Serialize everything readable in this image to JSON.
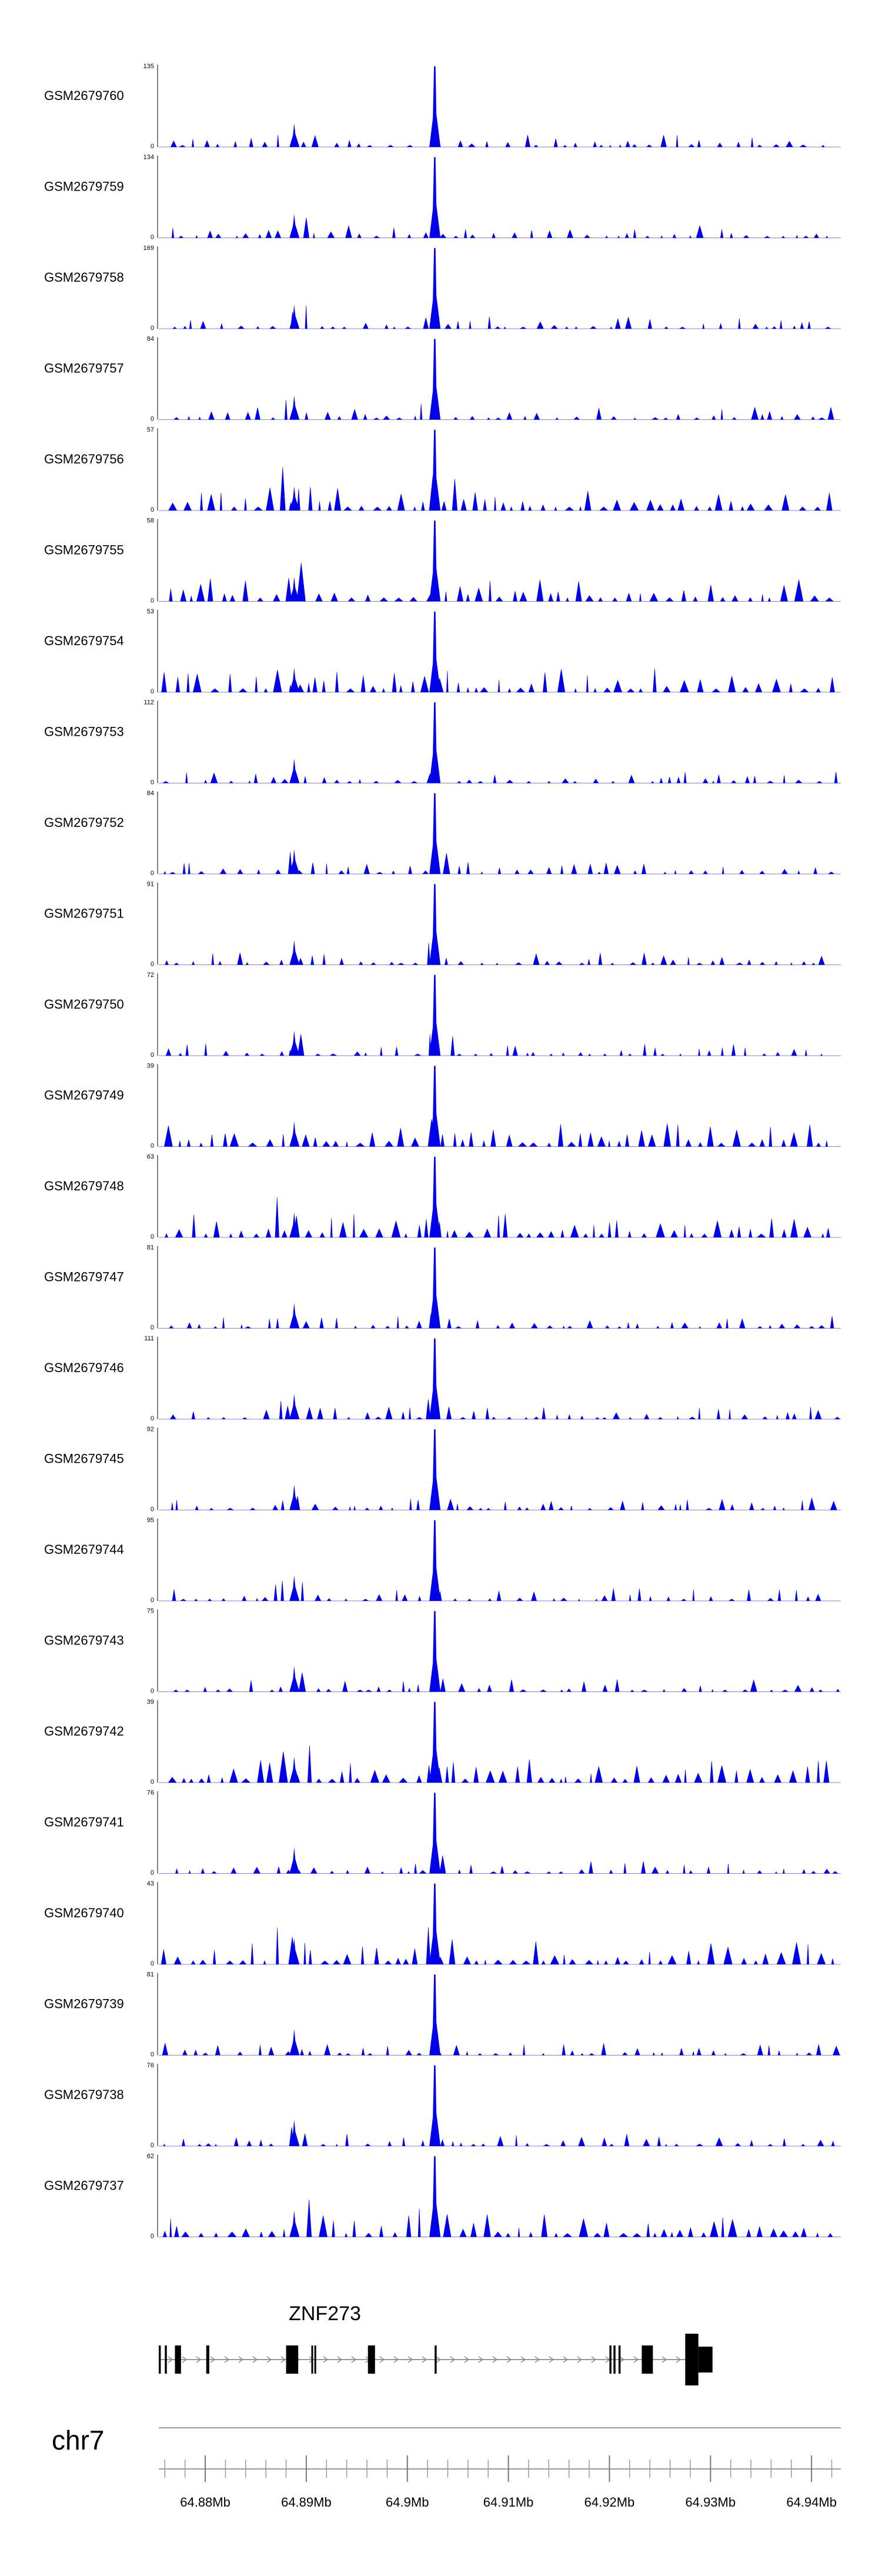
{
  "chart_data": {
    "type": "area",
    "title": "",
    "xlabel": "",
    "ylabel": "",
    "chromosome": "chr7",
    "x_range": [
      64.8754,
      64.9429
    ],
    "x_unit": "Mb",
    "x_tick_labels": [
      "64.88Mb",
      "64.89Mb",
      "64.9Mb",
      "64.91Mb",
      "64.92Mb",
      "64.93Mb",
      "64.94Mb"
    ],
    "x_tick_values": [
      64.88,
      64.89,
      64.9,
      64.91,
      64.92,
      64.93,
      64.94
    ],
    "fill_color": "#0000ee",
    "main_peak_x": 64.9027,
    "secondary_peak_x": 64.8888,
    "tracks": [
      {
        "name": "GSM2679760",
        "ymax": 135
      },
      {
        "name": "GSM2679759",
        "ymax": 134
      },
      {
        "name": "GSM2679758",
        "ymax": 169
      },
      {
        "name": "GSM2679757",
        "ymax": 84
      },
      {
        "name": "GSM2679756",
        "ymax": 57
      },
      {
        "name": "GSM2679755",
        "ymax": 58
      },
      {
        "name": "GSM2679754",
        "ymax": 53
      },
      {
        "name": "GSM2679753",
        "ymax": 112
      },
      {
        "name": "GSM2679752",
        "ymax": 84
      },
      {
        "name": "GSM2679751",
        "ymax": 91
      },
      {
        "name": "GSM2679750",
        "ymax": 72
      },
      {
        "name": "GSM2679749",
        "ymax": 39
      },
      {
        "name": "GSM2679748",
        "ymax": 63
      },
      {
        "name": "GSM2679747",
        "ymax": 81
      },
      {
        "name": "GSM2679746",
        "ymax": 111
      },
      {
        "name": "GSM2679745",
        "ymax": 92
      },
      {
        "name": "GSM2679744",
        "ymax": 95
      },
      {
        "name": "GSM2679743",
        "ymax": 75
      },
      {
        "name": "GSM2679742",
        "ymax": 39
      },
      {
        "name": "GSM2679741",
        "ymax": 76
      },
      {
        "name": "GSM2679740",
        "ymax": 43
      },
      {
        "name": "GSM2679739",
        "ymax": 81
      },
      {
        "name": "GSM2679738",
        "ymax": 76
      },
      {
        "name": "GSM2679737",
        "ymax": 62
      }
    ],
    "gene": {
      "name": "ZNF273",
      "strand": "+",
      "start": 64.8754,
      "end": 64.9302,
      "exons": [
        [
          64.8754,
          64.8756
        ],
        [
          64.876,
          64.8762
        ],
        [
          64.877,
          64.8776
        ],
        [
          64.8801,
          64.8804
        ],
        [
          64.888,
          64.8892
        ],
        [
          64.8905,
          64.8906
        ],
        [
          64.8908,
          64.8909
        ],
        [
          64.8961,
          64.8968
        ],
        [
          64.9027,
          64.9029
        ],
        [
          64.92,
          64.9202
        ],
        [
          64.9204,
          64.9206
        ],
        [
          64.9209,
          64.9211
        ],
        [
          64.9232,
          64.9243
        ],
        [
          64.9275,
          64.9288
        ],
        [
          64.9288,
          64.9302
        ]
      ]
    }
  }
}
